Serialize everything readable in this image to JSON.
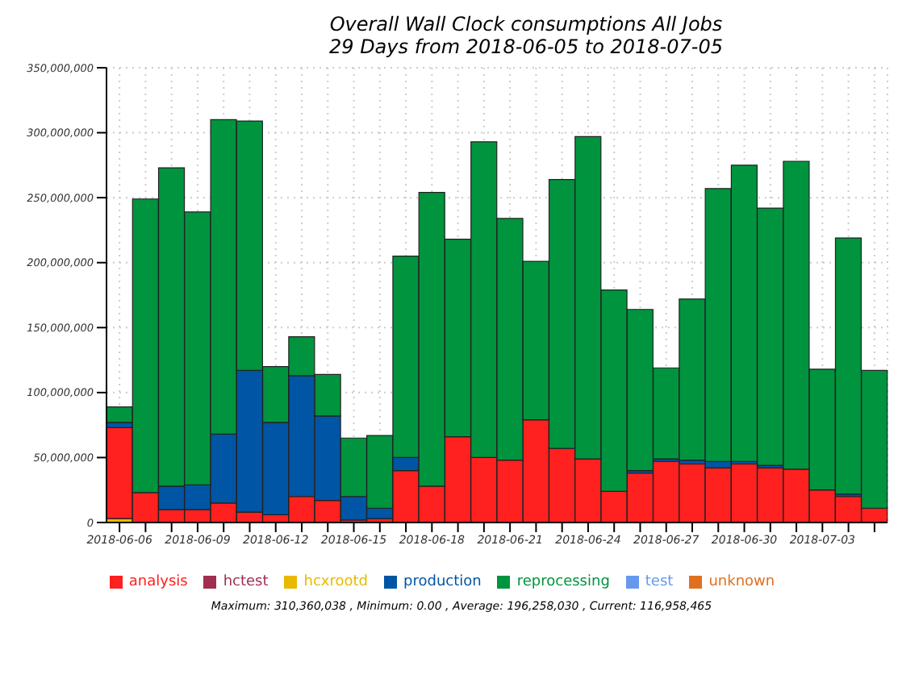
{
  "chart_data": {
    "type": "bar",
    "title": "Overall Wall Clock consumptions All Jobs",
    "subtitle": "29 Days from 2018-06-05 to 2018-07-05",
    "categories": [
      "2018-06-06",
      null,
      null,
      "2018-06-09",
      null,
      null,
      "2018-06-12",
      null,
      null,
      "2018-06-15",
      null,
      null,
      "2018-06-18",
      null,
      null,
      "2018-06-21",
      null,
      null,
      "2018-06-24",
      null,
      null,
      "2018-06-27",
      null,
      null,
      "2018-06-30",
      null,
      null,
      "2018-07-03",
      null,
      null
    ],
    "stacked": true,
    "series": [
      {
        "name": "hcxrootd",
        "color": "#e8b900",
        "values": [
          3000000,
          0,
          0,
          0,
          0,
          0,
          0,
          0,
          0,
          0,
          0,
          0,
          0,
          0,
          0,
          0,
          0,
          0,
          0,
          0,
          0,
          0,
          0,
          0,
          0,
          0,
          0,
          0,
          0,
          0
        ]
      },
      {
        "name": "analysis",
        "color": "#ff2020",
        "values": [
          70000000,
          23000000,
          10000000,
          10000000,
          15000000,
          8000000,
          6000000,
          20000000,
          17000000,
          2000000,
          3000000,
          40000000,
          28000000,
          66000000,
          50000000,
          48000000,
          79000000,
          57000000,
          49000000,
          24000000,
          38000000,
          47000000,
          45000000,
          42000000,
          45000000,
          42000000,
          41000000,
          25000000,
          20000000,
          11000000
        ]
      },
      {
        "name": "production",
        "color": "#0055a5",
        "values": [
          4000000,
          0,
          18000000,
          19000000,
          53000000,
          109000000,
          71000000,
          93000000,
          65000000,
          18000000,
          8000000,
          10000000,
          0,
          0,
          0,
          0,
          0,
          0,
          0,
          0,
          2000000,
          2000000,
          3000000,
          5000000,
          2000000,
          2000000,
          0,
          0,
          2000000,
          0
        ]
      },
      {
        "name": "reprocessing",
        "color": "#00943e",
        "values": [
          12000000,
          226000000,
          245000000,
          210000000,
          242000000,
          192000000,
          43000000,
          30000000,
          32000000,
          45000000,
          56000000,
          155000000,
          226000000,
          152000000,
          243000000,
          186000000,
          122000000,
          207000000,
          248000000,
          155000000,
          124000000,
          70000000,
          124000000,
          210000000,
          228000000,
          198000000,
          237000000,
          93000000,
          197000000,
          106000000
        ]
      },
      {
        "name": "hctest",
        "color": "#a03050",
        "values": [
          0,
          0,
          0,
          0,
          0,
          0,
          0,
          0,
          0,
          0,
          0,
          0,
          0,
          0,
          0,
          0,
          0,
          0,
          0,
          0,
          0,
          0,
          0,
          0,
          0,
          0,
          0,
          0,
          0,
          0
        ]
      },
      {
        "name": "unknown",
        "color": "#e07020",
        "values": [
          0,
          0,
          0,
          0,
          0,
          0,
          0,
          0,
          0,
          0,
          0,
          0,
          0,
          0,
          0,
          0,
          0,
          0,
          0,
          0,
          0,
          0,
          0,
          0,
          0,
          0,
          0,
          0,
          0,
          0
        ]
      },
      {
        "name": "test",
        "color": "#6699ee",
        "values": [
          0,
          0,
          0,
          0,
          0,
          0,
          0,
          0,
          0,
          0,
          0,
          0,
          0,
          0,
          0,
          0,
          0,
          0,
          0,
          0,
          0,
          0,
          0,
          0,
          0,
          0,
          0,
          0,
          0,
          0
        ]
      }
    ],
    "ylim": [
      0,
      350000000
    ],
    "yticks": [
      {
        "value": 0,
        "label": "0"
      },
      {
        "value": 50000000,
        "label": "50,000,000"
      },
      {
        "value": 100000000,
        "label": "100,000,000"
      },
      {
        "value": 150000000,
        "label": "150,000,000"
      },
      {
        "value": 200000000,
        "label": "200,000,000"
      },
      {
        "value": 250000000,
        "label": "250,000,000"
      },
      {
        "value": 300000000,
        "label": "300,000,000"
      },
      {
        "value": 350000000,
        "label": "350,000,000"
      }
    ],
    "grid": true,
    "legend": "bottom",
    "annotations": [
      "Maximum: 310,360,038 , Minimum: 0.00 , Average: 196,258,030 , Current: 116,958,465"
    ]
  }
}
